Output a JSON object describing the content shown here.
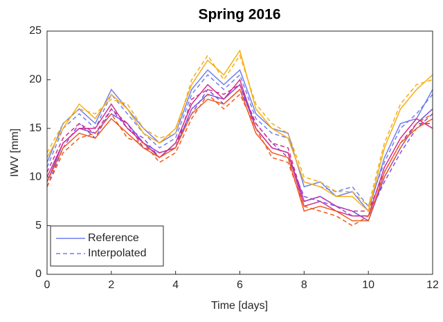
{
  "chart_data": {
    "type": "line",
    "title": "Spring 2016",
    "x_label": "Time [days]",
    "y_label": "IWV [mm]",
    "x": [
      0,
      0.5,
      1,
      1.5,
      2,
      2.5,
      3,
      3.5,
      4,
      4.5,
      5,
      5.5,
      6,
      6.5,
      7,
      7.5,
      8,
      8.5,
      9,
      9.5,
      10,
      10.5,
      11,
      11.5,
      12
    ],
    "xlim": [
      0,
      12
    ],
    "xticks": [
      0,
      2,
      4,
      6,
      8,
      10,
      12
    ],
    "ylim": [
      0,
      25
    ],
    "yticks": [
      0,
      5,
      10,
      15,
      20,
      25
    ],
    "legend": "lower left",
    "series": [
      {
        "name": "Reference",
        "color": "#6f7ff0",
        "dashed": false,
        "values": [
          11.5,
          15.5,
          17,
          15.5,
          19,
          17,
          15,
          13.5,
          14.5,
          19,
          21,
          19.5,
          21,
          16.5,
          15,
          14.5,
          9,
          9.5,
          8,
          8.5,
          6.5,
          12,
          15.5,
          16,
          19
        ]
      },
      {
        "name": "Interpolated",
        "color": "#6f7ff0",
        "dashed": true,
        "values": [
          11,
          15,
          16.5,
          15,
          18.5,
          16.5,
          14.5,
          13,
          14,
          18.5,
          20.5,
          19,
          20.5,
          16,
          14.5,
          14,
          9.5,
          9,
          8.5,
          9,
          7,
          11.5,
          15,
          16.5,
          18.5
        ]
      },
      {
        "color": "#7a4fe0",
        "dashed": false,
        "values": [
          9.5,
          13.5,
          15,
          14.5,
          16.5,
          15.5,
          13.5,
          12.5,
          13,
          17,
          18.5,
          18,
          19.5,
          15,
          13,
          12.5,
          7.5,
          8,
          7,
          6.5,
          5.5,
          10,
          13,
          15.5,
          17
        ]
      },
      {
        "color": "#7a4fe0",
        "dashed": true,
        "values": [
          9,
          13,
          15.5,
          14,
          17,
          15,
          14,
          12,
          13.5,
          16.5,
          19,
          17.5,
          19,
          15.5,
          13.5,
          12,
          8,
          7.5,
          7,
          6,
          6,
          9.5,
          12.5,
          15,
          16.5
        ]
      },
      {
        "color": "#d42c8c",
        "dashed": false,
        "values": [
          10,
          13.5,
          15,
          15,
          17.5,
          15,
          13.5,
          12,
          13.5,
          17.5,
          19.5,
          18,
          20,
          15,
          13,
          12.5,
          7,
          7.5,
          6.5,
          6,
          6,
          11,
          14,
          16,
          15
        ]
      },
      {
        "color": "#d42c8c",
        "dashed": true,
        "values": [
          10.5,
          14,
          15.5,
          14.5,
          17,
          15.5,
          13,
          12.5,
          13,
          18,
          19,
          18.5,
          19.5,
          15.5,
          13.5,
          13,
          7.5,
          8,
          7,
          6.5,
          6.5,
          10.5,
          13.5,
          15.5,
          15.5
        ]
      },
      {
        "color": "#ee5a1e",
        "dashed": false,
        "values": [
          9.5,
          13,
          14.5,
          14,
          16,
          14.5,
          13,
          12,
          13,
          16.5,
          18,
          17.5,
          19,
          14.5,
          12.5,
          12,
          6.5,
          7,
          6.5,
          5.5,
          5.5,
          10.5,
          13.5,
          15,
          16
        ]
      },
      {
        "color": "#ee5a1e",
        "dashed": true,
        "values": [
          9,
          12.5,
          14,
          14.5,
          16.5,
          14,
          13.5,
          11.5,
          12.5,
          16,
          18.5,
          17,
          18.5,
          15,
          12,
          11.5,
          7,
          6.5,
          6,
          5,
          6,
          10,
          13,
          15.5,
          16.5
        ]
      },
      {
        "color": "#f5ae12",
        "dashed": false,
        "values": [
          12,
          15,
          17.5,
          16,
          18.5,
          17,
          14.5,
          13.5,
          15,
          19.5,
          22,
          20.5,
          23,
          17,
          15,
          14,
          9.5,
          9,
          8,
          8,
          6.5,
          13,
          17,
          19,
          20.5
        ]
      },
      {
        "color": "#f5ae12",
        "dashed": true,
        "values": [
          12.5,
          15.5,
          17,
          16.5,
          18,
          17.5,
          15,
          14,
          14.5,
          20,
          22.5,
          20,
          22.5,
          17.5,
          15.5,
          14.5,
          10,
          9.5,
          8.5,
          8.5,
          7,
          13.5,
          17.5,
          19.5,
          20
        ]
      }
    ]
  }
}
